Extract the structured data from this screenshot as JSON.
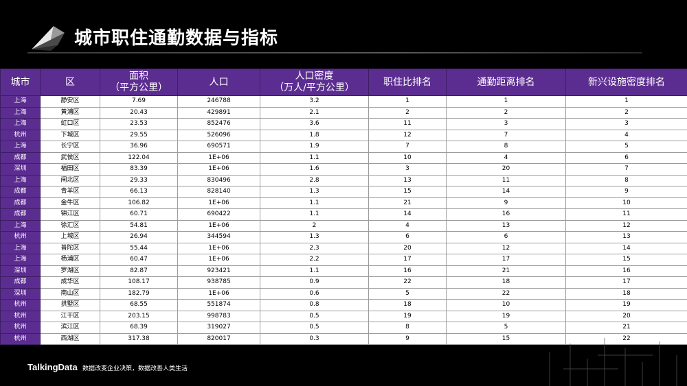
{
  "title": "城市职住通勤数据与指标",
  "columns": [
    "城市",
    "区",
    "面积\n（平方公里）",
    "人口",
    "人口密度\n（万人/平方公里）",
    "职住比排名",
    "通勤距离排名",
    "新兴设施密度排名"
  ],
  "rows": [
    [
      "上海",
      "静安区",
      "7.69",
      "246788",
      "3.2",
      "1",
      "1",
      "1"
    ],
    [
      "上海",
      "黄浦区",
      "20.43",
      "429891",
      "2.1",
      "2",
      "2",
      "2"
    ],
    [
      "上海",
      "虹口区",
      "23.53",
      "852476",
      "3.6",
      "11",
      "3",
      "3"
    ],
    [
      "杭州",
      "下城区",
      "29.55",
      "526096",
      "1.8",
      "12",
      "7",
      "4"
    ],
    [
      "上海",
      "长宁区",
      "36.96",
      "690571",
      "1.9",
      "7",
      "8",
      "5"
    ],
    [
      "成都",
      "武侯区",
      "122.04",
      "1E+06",
      "1.1",
      "10",
      "4",
      "6"
    ],
    [
      "深圳",
      "福田区",
      "83.39",
      "1E+06",
      "1.6",
      "3",
      "20",
      "7"
    ],
    [
      "上海",
      "闸北区",
      "29.33",
      "830496",
      "2.8",
      "13",
      "11",
      "8"
    ],
    [
      "成都",
      "青羊区",
      "66.13",
      "828140",
      "1.3",
      "15",
      "14",
      "9"
    ],
    [
      "成都",
      "金牛区",
      "106.82",
      "1E+06",
      "1.1",
      "21",
      "9",
      "10"
    ],
    [
      "成都",
      "锦江区",
      "60.71",
      "690422",
      "1.1",
      "14",
      "16",
      "11"
    ],
    [
      "上海",
      "徐汇区",
      "54.81",
      "1E+06",
      "2",
      "4",
      "13",
      "12"
    ],
    [
      "杭州",
      "上城区",
      "26.94",
      "344594",
      "1.3",
      "6",
      "6",
      "13"
    ],
    [
      "上海",
      "普陀区",
      "55.44",
      "1E+06",
      "2.3",
      "20",
      "12",
      "14"
    ],
    [
      "上海",
      "杨浦区",
      "60.47",
      "1E+06",
      "2.2",
      "17",
      "17",
      "15"
    ],
    [
      "深圳",
      "罗湖区",
      "82.87",
      "923421",
      "1.1",
      "16",
      "21",
      "16"
    ],
    [
      "成都",
      "成华区",
      "108.17",
      "938785",
      "0.9",
      "22",
      "18",
      "17"
    ],
    [
      "深圳",
      "南山区",
      "182.79",
      "1E+06",
      "0.6",
      "5",
      "22",
      "18"
    ],
    [
      "杭州",
      "拱墅区",
      "68.55",
      "551874",
      "0.8",
      "18",
      "10",
      "19"
    ],
    [
      "杭州",
      "江干区",
      "203.15",
      "998783",
      "0.5",
      "19",
      "19",
      "20"
    ],
    [
      "杭州",
      "滨江区",
      "68.39",
      "319027",
      "0.5",
      "8",
      "5",
      "21"
    ],
    [
      "杭州",
      "西湖区",
      "317.38",
      "820017",
      "0.3",
      "9",
      "15",
      "22"
    ]
  ],
  "footer": {
    "brand": "TalkingData",
    "slogan": "数据改变企业决策，数据改善人类生活"
  },
  "colors": {
    "header_bg": "#5c2d91",
    "background": "#000000"
  }
}
